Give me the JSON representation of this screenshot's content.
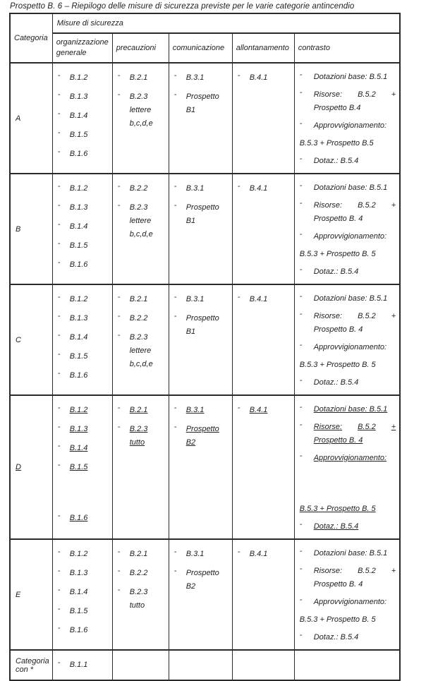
{
  "title": "Prospetto B. 6  – Riepilogo delle misure di sicurezza previste per le varie categorie antincendio",
  "table": {
    "header": {
      "categoria": "Categoria",
      "misure": "Misure di sicurezza",
      "columns": [
        "organizzazione generale",
        "precauzioni",
        "comunicazione",
        "allontanamento",
        "contrasto"
      ]
    },
    "rows": [
      {
        "key": "A",
        "categoria": "A",
        "underline": false,
        "organizzazione": [
          {
            "lines": [
              "B.1.2"
            ]
          },
          {
            "lines": [
              "B.1.3"
            ]
          },
          {
            "lines": [
              "B.1.4"
            ]
          },
          {
            "lines": [
              "B.1.5"
            ]
          },
          {
            "lines": [
              "B.1.6"
            ]
          }
        ],
        "precauzioni": [
          {
            "lines": [
              "B.2.1"
            ]
          },
          {
            "lines": [
              "B.2.3",
              "lettere",
              "b,c,d,e"
            ]
          }
        ],
        "comunicazione": [
          {
            "lines": [
              "B.3.1"
            ]
          },
          {
            "lines": [
              "Prospetto",
              "B1"
            ]
          }
        ],
        "allontanamento": [
          {
            "lines": [
              "B.4.1"
            ]
          }
        ],
        "contrasto": {
          "item1": "Dotazioni base: B.5.1",
          "item2_parts": [
            "Risorse:",
            "B.5.2",
            "+"
          ],
          "item2_wrap": "Prospetto B.4",
          "item3": "Approvvigionamento:",
          "item3_line2": "B.5.3 + Prospetto B.5",
          "item4": "Dotaz.: B.5.4",
          "gap_before_line2": false
        }
      },
      {
        "key": "B",
        "categoria": "B",
        "underline": false,
        "organizzazione": [
          {
            "lines": [
              "B.1.2"
            ]
          },
          {
            "lines": [
              "B.1.3"
            ]
          },
          {
            "lines": [
              "B.1.4"
            ]
          },
          {
            "lines": [
              "B.1.5"
            ]
          },
          {
            "lines": [
              "B.1.6"
            ]
          }
        ],
        "precauzioni": [
          {
            "lines": [
              "B.2.2"
            ]
          },
          {
            "lines": [
              "B.2.3",
              "lettere",
              "b,c,d,e"
            ]
          }
        ],
        "comunicazione": [
          {
            "lines": [
              "B.3.1"
            ]
          },
          {
            "lines": [
              "Prospetto",
              "B1"
            ]
          }
        ],
        "allontanamento": [
          {
            "lines": [
              "B.4.1"
            ]
          }
        ],
        "contrasto": {
          "item1": "Dotazioni base: B.5.1",
          "item2_parts": [
            "Risorse:",
            "B.5.2",
            "+"
          ],
          "item2_wrap": "Prospetto B. 4",
          "item3": "Approvvigionamento:",
          "item3_line2": "B.5.3 + Prospetto B. 5",
          "item4": "Dotaz.: B.5.4",
          "gap_before_line2": false
        }
      },
      {
        "key": "C",
        "categoria": "C",
        "underline": false,
        "organizzazione": [
          {
            "lines": [
              "B.1.2"
            ]
          },
          {
            "lines": [
              "B.1.3"
            ]
          },
          {
            "lines": [
              "B.1.4"
            ]
          },
          {
            "lines": [
              "B.1.5"
            ]
          },
          {
            "lines": [
              "B.1.6"
            ]
          }
        ],
        "precauzioni": [
          {
            "lines": [
              "B.2.1"
            ]
          },
          {
            "lines": [
              "B.2.2"
            ]
          },
          {
            "lines": [
              "B.2.3",
              "lettere",
              "b,c,d,e"
            ]
          }
        ],
        "comunicazione": [
          {
            "lines": [
              "B.3.1"
            ]
          },
          {
            "lines": [
              "Prospetto",
              "B1"
            ]
          }
        ],
        "allontanamento": [
          {
            "lines": [
              "B.4.1"
            ]
          }
        ],
        "contrasto": {
          "item1": "Dotazioni base: B.5.1",
          "item2_parts": [
            "Risorse:",
            "B.5.2",
            "+"
          ],
          "item2_wrap": "Prospetto B. 4",
          "item3": "Approvvigionamento:",
          "item3_line2": "B.5.3 + Prospetto B. 5",
          "item4": "Dotaz.: B.5.4",
          "gap_before_line2": false
        }
      },
      {
        "key": "D",
        "categoria": "D",
        "underline": true,
        "organizzazione": [
          {
            "lines": [
              "B.1.2"
            ]
          },
          {
            "lines": [
              "B.1.3"
            ]
          },
          {
            "lines": [
              "B.1.4"
            ]
          },
          {
            "lines": [
              "B.1.5"
            ]
          },
          {
            "lines": [
              "B.1.6"
            ],
            "push": true
          }
        ],
        "precauzioni": [
          {
            "lines": [
              "B.2.1"
            ]
          },
          {
            "lines": [
              "B.2.3",
              "tutto"
            ]
          }
        ],
        "comunicazione": [
          {
            "lines": [
              "B.3.1"
            ]
          },
          {
            "lines": [
              "Prospetto",
              "B2"
            ]
          }
        ],
        "allontanamento": [
          {
            "lines": [
              "B.4.1"
            ]
          }
        ],
        "contrasto": {
          "item1": "Dotazioni base: B.5.1",
          "item2_parts": [
            "Risorse:",
            "B.5.2",
            "+"
          ],
          "item2_wrap": "Prospetto B. 4",
          "item3": "Approvvigionamento:",
          "item3_line2": "B.5.3 + Prospetto B. 5",
          "item4": "Dotaz.: B.5.4",
          "gap_before_line2": true
        }
      },
      {
        "key": "E",
        "categoria": "E",
        "underline": false,
        "organizzazione": [
          {
            "lines": [
              "B.1.2"
            ]
          },
          {
            "lines": [
              "B.1.3"
            ]
          },
          {
            "lines": [
              "B.1.4"
            ]
          },
          {
            "lines": [
              "B.1.5"
            ]
          },
          {
            "lines": [
              "B.1.6"
            ]
          }
        ],
        "precauzioni": [
          {
            "lines": [
              "B.2.1"
            ]
          },
          {
            "lines": [
              "B.2.2"
            ]
          },
          {
            "lines": [
              "B.2.3",
              "tutto"
            ]
          }
        ],
        "comunicazione": [
          {
            "lines": [
              "B.3.1"
            ]
          },
          {
            "lines": [
              "Prospetto",
              "B2"
            ]
          }
        ],
        "allontanamento": [
          {
            "lines": [
              "B.4.1"
            ]
          }
        ],
        "contrasto": {
          "item1": "Dotazioni base: B.5.1",
          "item2_parts": [
            "Risorse:",
            "B.5.2",
            "+"
          ],
          "item2_wrap": "Prospetto B. 4",
          "item3": "Approvvigionamento:",
          "item3_line2": "B.5.3 + Prospetto B. 5",
          "item4": "Dotaz.: B.5.4",
          "gap_before_line2": false
        }
      },
      {
        "key": "footer",
        "categoria": "Categoria con *",
        "underline": false,
        "organizzazione": [
          {
            "lines": [
              "B.1.1"
            ]
          }
        ],
        "precauzioni": [],
        "comunicazione": [],
        "allontanamento": [],
        "contrasto": null
      }
    ]
  },
  "colors": {
    "border": "#2a2a2a",
    "text": "#222222",
    "background": "#ffffff"
  }
}
